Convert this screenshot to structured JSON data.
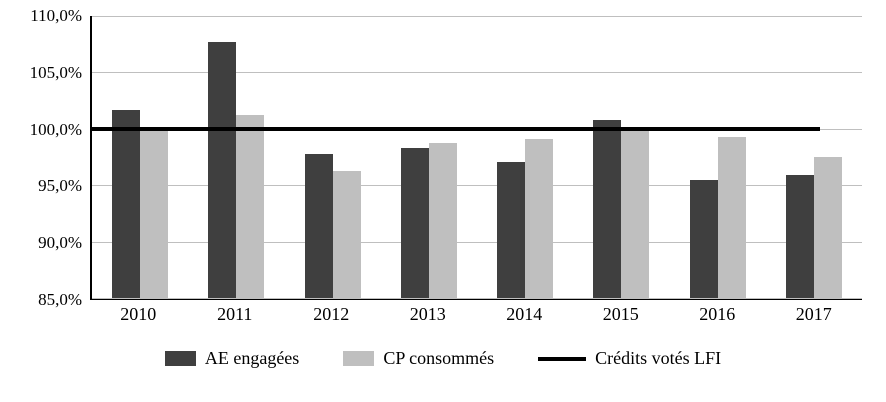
{
  "chart_data": {
    "type": "bar",
    "title": "",
    "xlabel": "",
    "ylabel": "",
    "categories": [
      "2010",
      "2011",
      "2012",
      "2013",
      "2014",
      "2015",
      "2016",
      "2017"
    ],
    "series": [
      {
        "name": "AE engagées",
        "color": "#3f3f3f",
        "values": [
          101.7,
          107.7,
          97.8,
          98.3,
          97.1,
          100.8,
          95.5,
          95.9
        ]
      },
      {
        "name": "CP consommés",
        "color": "#bfbfbf",
        "values": [
          100.1,
          101.2,
          96.3,
          98.7,
          99.1,
          100.0,
          99.3,
          97.5
        ]
      }
    ],
    "reference_line": {
      "name": "Crédits votés LFI",
      "value": 100.0,
      "color": "#000000"
    },
    "ylim": [
      85.0,
      110.0
    ],
    "ytick_values": [
      110,
      105,
      100,
      95,
      90,
      85
    ],
    "yticks": [
      "110,0%",
      "105,0%",
      "100,0%",
      "95,0%",
      "90,0%",
      "85,0%"
    ],
    "grid": true,
    "legend_position": "bottom"
  }
}
